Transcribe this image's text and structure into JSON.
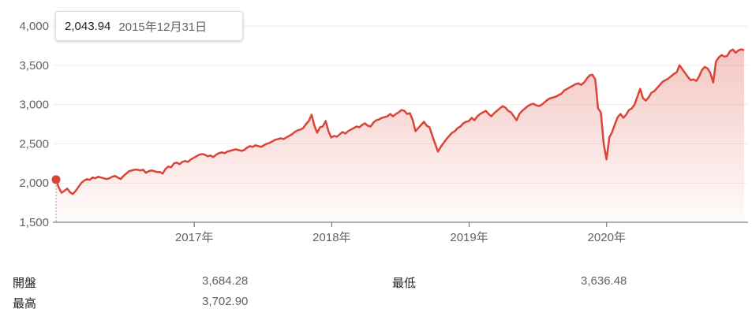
{
  "chart_data": {
    "type": "area",
    "y_ticks": [
      "4,000",
      "3,500",
      "3,000",
      "2,500",
      "2,000",
      "1,500"
    ],
    "x_tick_labels": [
      "2017年",
      "2018年",
      "2019年",
      "2020年"
    ],
    "ylim": [
      1500,
      4000
    ],
    "grid": true,
    "line_color": "#db4437",
    "fill_color": "#db4437",
    "series": [
      {
        "values": [
          2043.94,
          1940,
          1875,
          1900,
          1930,
          1880,
          1860,
          1900,
          1950,
          2000,
          2030,
          2050,
          2040,
          2070,
          2060,
          2080,
          2070,
          2060,
          2050,
          2060,
          2080,
          2090,
          2070,
          2050,
          2090,
          2120,
          2150,
          2160,
          2170,
          2170,
          2160,
          2170,
          2130,
          2150,
          2160,
          2150,
          2140,
          2140,
          2120,
          2180,
          2210,
          2200,
          2250,
          2260,
          2240,
          2270,
          2280,
          2270,
          2300,
          2320,
          2340,
          2360,
          2370,
          2360,
          2340,
          2350,
          2330,
          2360,
          2380,
          2390,
          2380,
          2400,
          2410,
          2420,
          2430,
          2420,
          2410,
          2420,
          2450,
          2470,
          2460,
          2480,
          2470,
          2460,
          2480,
          2500,
          2510,
          2530,
          2550,
          2560,
          2570,
          2560,
          2580,
          2600,
          2620,
          2650,
          2670,
          2680,
          2700,
          2750,
          2790,
          2870,
          2730,
          2640,
          2710,
          2720,
          2790,
          2660,
          2580,
          2600,
          2590,
          2620,
          2650,
          2630,
          2660,
          2680,
          2700,
          2720,
          2710,
          2740,
          2760,
          2730,
          2720,
          2770,
          2800,
          2810,
          2830,
          2840,
          2850,
          2880,
          2850,
          2880,
          2900,
          2930,
          2920,
          2880,
          2890,
          2800,
          2660,
          2700,
          2740,
          2780,
          2730,
          2710,
          2600,
          2500,
          2400,
          2460,
          2510,
          2560,
          2600,
          2640,
          2660,
          2700,
          2720,
          2760,
          2780,
          2790,
          2830,
          2800,
          2850,
          2880,
          2900,
          2920,
          2880,
          2850,
          2890,
          2920,
          2950,
          2980,
          2960,
          2920,
          2900,
          2850,
          2800,
          2880,
          2920,
          2950,
          2980,
          3000,
          3010,
          2990,
          2980,
          3000,
          3030,
          3060,
          3080,
          3090,
          3100,
          3120,
          3140,
          3180,
          3200,
          3220,
          3240,
          3260,
          3270,
          3250,
          3280,
          3330,
          3370,
          3380,
          3320,
          2950,
          2900,
          2500,
          2300,
          2580,
          2650,
          2750,
          2840,
          2880,
          2830,
          2870,
          2930,
          2950,
          3000,
          3100,
          3200,
          3080,
          3050,
          3090,
          3150,
          3170,
          3210,
          3250,
          3290,
          3310,
          3330,
          3360,
          3390,
          3410,
          3500,
          3450,
          3400,
          3350,
          3310,
          3320,
          3300,
          3360,
          3440,
          3480,
          3460,
          3400,
          3280,
          3550,
          3600,
          3630,
          3610,
          3620,
          3680,
          3700,
          3660,
          3690,
          3702.9,
          3690
        ]
      }
    ],
    "date_range": [
      "2015-12-31",
      "2020-12-31"
    ]
  },
  "tooltip": {
    "value": "2,043.94",
    "date": "2015年12月31日"
  },
  "stats": {
    "open_label": "開盤",
    "open_value": "3,684.28",
    "high_label": "最高",
    "high_value": "3,702.90",
    "low_label": "最低",
    "low_value": "3,636.48"
  }
}
